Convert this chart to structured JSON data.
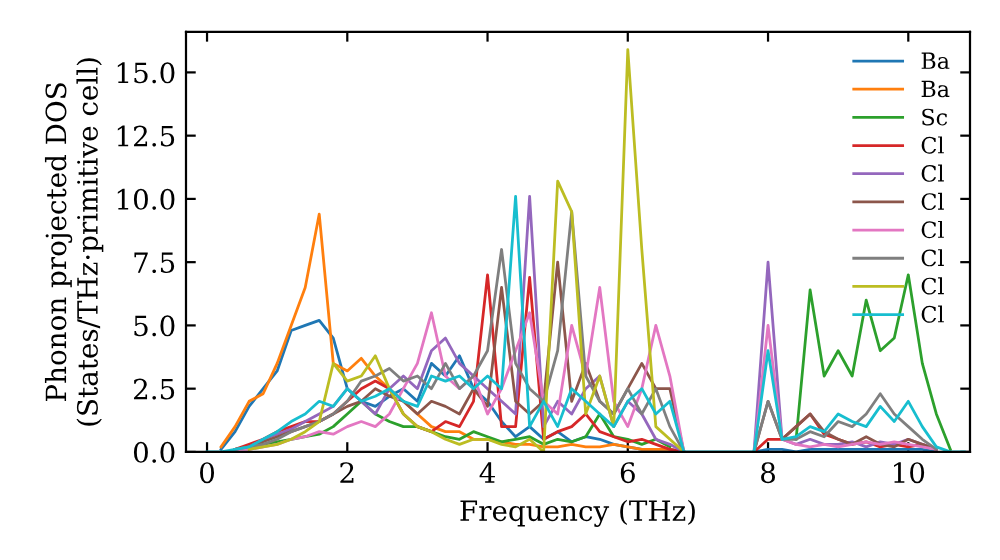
{
  "chart_data": {
    "type": "line",
    "xlabel": "Frequency (THz)",
    "ylabel": "Phonon projected DOS\n(States/THz·primitive cell)",
    "x": [
      0.0,
      0.2,
      0.4,
      0.6,
      0.8,
      1.0,
      1.2,
      1.4,
      1.6,
      1.8,
      2.0,
      2.2,
      2.4,
      2.6,
      2.8,
      3.0,
      3.2,
      3.4,
      3.6,
      3.8,
      4.0,
      4.2,
      4.4,
      4.6,
      4.8,
      5.0,
      5.2,
      5.4,
      5.6,
      5.8,
      6.0,
      6.2,
      6.4,
      6.6,
      6.8,
      7.0,
      7.2,
      7.4,
      7.6,
      7.8,
      8.0,
      8.2,
      8.4,
      8.6,
      8.8,
      9.0,
      9.2,
      9.4,
      9.6,
      9.8,
      10.0,
      10.2,
      10.4,
      10.6,
      10.8
    ],
    "series": [
      {
        "name": "Ba",
        "color": "#1f77b4",
        "values": [
          null,
          0.1,
          0.8,
          1.8,
          2.5,
          3.2,
          4.8,
          5.0,
          5.2,
          4.5,
          2.5,
          2.0,
          1.8,
          2.2,
          2.5,
          2.0,
          3.5,
          3.0,
          3.8,
          2.5,
          2.0,
          1.2,
          0.6,
          1.0,
          0.5,
          0.8,
          0.4,
          0.6,
          0.5,
          0.3,
          0.2,
          0.1,
          0.1,
          0.1,
          0,
          null,
          null,
          null,
          null,
          0,
          0.1,
          0.1,
          0,
          0.1,
          0.1,
          0.1,
          0.1,
          0.1,
          0.1,
          0.1,
          0.1,
          0.1,
          0,
          null,
          null
        ]
      },
      {
        "name": "Ba",
        "color": "#ff7f0e",
        "values": [
          null,
          0.2,
          1.0,
          2.0,
          2.3,
          3.5,
          5.0,
          6.5,
          9.4,
          3.5,
          3.2,
          3.7,
          3.0,
          2.5,
          2.0,
          1.5,
          1.0,
          0.8,
          0.8,
          0.5,
          0.5,
          0.4,
          0.3,
          0.3,
          0.2,
          0.2,
          0.3,
          0.2,
          0.2,
          0.3,
          0.2,
          0.1,
          0.1,
          0.1,
          0,
          null,
          null,
          null,
          null,
          null,
          null,
          null,
          null,
          null,
          null,
          null,
          null,
          null,
          null,
          null,
          null,
          null,
          null,
          null,
          null
        ]
      },
      {
        "name": "Sc",
        "color": "#2ca02c",
        "values": [
          null,
          null,
          0.1,
          0.2,
          0.3,
          0.4,
          0.5,
          0.6,
          0.7,
          1.0,
          1.5,
          2.0,
          1.5,
          1.2,
          1.0,
          1.0,
          0.8,
          0.6,
          0.5,
          0.8,
          0.6,
          0.4,
          0.5,
          0.6,
          0.3,
          0.5,
          0.4,
          0.6,
          1.5,
          0.6,
          0.5,
          0.3,
          0.5,
          0.2,
          null,
          null,
          null,
          null,
          null,
          null,
          null,
          null,
          0.5,
          6.4,
          3.0,
          4.0,
          3.0,
          6.0,
          4.0,
          4.5,
          7.0,
          3.5,
          1.5,
          0.1,
          null
        ]
      },
      {
        "name": "Cl",
        "color": "#d62728",
        "values": [
          null,
          null,
          0.1,
          0.3,
          0.5,
          0.8,
          1.0,
          1.2,
          1.2,
          1.5,
          2.0,
          2.5,
          2.8,
          2.5,
          1.5,
          1.0,
          0.8,
          1.2,
          1.0,
          2.0,
          7.0,
          1.0,
          1.0,
          6.9,
          0.5,
          0.8,
          1.0,
          1.5,
          0.8,
          0.6,
          0.4,
          0.5,
          0.3,
          0.1,
          0,
          null,
          null,
          null,
          null,
          0,
          0.5,
          0.5,
          1.0,
          1.5,
          0.7,
          0.5,
          0.3,
          0.4,
          0.2,
          0.3,
          0.2,
          0.3,
          0.1,
          null,
          null
        ]
      },
      {
        "name": "Cl",
        "color": "#9467bd",
        "values": [
          null,
          null,
          null,
          0.2,
          0.5,
          0.7,
          0.9,
          1.2,
          1.5,
          1.8,
          2.5,
          2.0,
          1.5,
          2.5,
          3.0,
          2.5,
          4.0,
          4.5,
          3.5,
          3.0,
          2.5,
          2.0,
          1.5,
          10.1,
          1.0,
          2.0,
          1.5,
          2.5,
          3.0,
          1.0,
          2.0,
          1.5,
          0.5,
          0.3,
          0,
          null,
          null,
          null,
          null,
          0,
          7.5,
          0.5,
          0.3,
          0.5,
          0.3,
          0.3,
          0.4,
          0.2,
          0.4,
          0.3,
          0.5,
          0.3,
          0.1,
          null,
          null
        ]
      },
      {
        "name": "Cl",
        "color": "#8c564b",
        "values": [
          null,
          null,
          0.1,
          0.2,
          0.4,
          0.6,
          0.8,
          1.0,
          1.2,
          1.5,
          1.8,
          2.0,
          2.5,
          2.2,
          2.0,
          1.5,
          2.0,
          1.8,
          1.5,
          2.5,
          1.8,
          6.5,
          2.0,
          1.5,
          2.0,
          7.5,
          2.0,
          3.5,
          2.0,
          1.5,
          2.5,
          3.5,
          2.5,
          2.5,
          0,
          null,
          null,
          null,
          null,
          0,
          2.0,
          0.5,
          1.0,
          1.5,
          0.8,
          0.5,
          0.3,
          0.6,
          0.3,
          0.2,
          0.5,
          0.3,
          0.1,
          null,
          null
        ]
      },
      {
        "name": "Cl",
        "color": "#e377c2",
        "values": [
          null,
          null,
          0.1,
          0.1,
          0.2,
          0.3,
          0.5,
          0.6,
          0.8,
          0.7,
          1.0,
          1.2,
          1.0,
          1.5,
          2.5,
          3.5,
          5.5,
          3.0,
          2.5,
          3.0,
          1.5,
          2.5,
          4.0,
          5.5,
          2.0,
          1.5,
          5.0,
          3.0,
          6.5,
          2.0,
          1.0,
          2.5,
          5.0,
          3.0,
          0,
          null,
          null,
          null,
          null,
          0,
          5.0,
          0.5,
          0.3,
          0.2,
          0.3,
          0.2,
          0.3,
          0.4,
          0.3,
          0.4,
          0.3,
          0.2,
          0.1,
          null,
          null
        ]
      },
      {
        "name": "Cl",
        "color": "#7f7f7f",
        "values": [
          null,
          null,
          0.1,
          0.2,
          0.3,
          0.5,
          0.8,
          1.0,
          1.2,
          1.5,
          2.0,
          2.8,
          3.0,
          3.3,
          2.8,
          3.0,
          2.5,
          3.5,
          2.5,
          3.0,
          4.0,
          8.0,
          3.5,
          2.5,
          2.0,
          4.0,
          9.5,
          3.0,
          2.0,
          1.5,
          2.5,
          1.5,
          2.5,
          1.0,
          0,
          null,
          null,
          null,
          null,
          0,
          2.0,
          0.5,
          0.5,
          0.8,
          0.6,
          1.2,
          1.0,
          1.5,
          2.3,
          1.5,
          1.0,
          0.5,
          0.1,
          null,
          null
        ]
      },
      {
        "name": "Cl",
        "color": "#bcbd22",
        "values": [
          null,
          null,
          null,
          0.1,
          0.2,
          0.3,
          0.5,
          0.8,
          1.2,
          3.5,
          2.8,
          3.0,
          3.8,
          2.5,
          1.5,
          1.0,
          0.8,
          0.5,
          0.3,
          0.5,
          0.5,
          0.3,
          0.2,
          0.5,
          0,
          10.7,
          9.5,
          1.5,
          3.0,
          1.0,
          15.9,
          8.0,
          1.0,
          0.5,
          0,
          null,
          null,
          null,
          null,
          null,
          null,
          null,
          null,
          null,
          null,
          null,
          null,
          null,
          null,
          null,
          null,
          null,
          null,
          null,
          null
        ]
      },
      {
        "name": "Cl",
        "color": "#17becf",
        "values": [
          0,
          0,
          0.1,
          0.2,
          0.5,
          0.8,
          1.2,
          1.5,
          2.0,
          1.8,
          2.5,
          2.0,
          2.2,
          2.5,
          2.0,
          1.8,
          3.0,
          2.8,
          3.0,
          2.5,
          3.0,
          2.5,
          10.1,
          1.0,
          2.0,
          1.0,
          2.5,
          2.0,
          1.5,
          1.0,
          2.0,
          2.5,
          1.5,
          2.0,
          0,
          0,
          0,
          0,
          0,
          0,
          4.0,
          0.5,
          0.6,
          1.0,
          0.8,
          1.5,
          1.2,
          1.0,
          1.8,
          1.2,
          2.0,
          1.0,
          0.2,
          0,
          0
        ]
      }
    ],
    "xlim": [
      -0.3,
      10.88
    ],
    "ylim": [
      0.0,
      16.6
    ],
    "xticks": [
      0,
      2,
      4,
      6,
      8,
      10
    ],
    "yticks": [
      {
        "value": 0,
        "label": "0.0"
      },
      2.5,
      {
        "value": 5,
        "label": "5.0"
      },
      7.5,
      {
        "value": 10,
        "label": "10.0"
      },
      12.5,
      {
        "value": 15,
        "label": "15.0"
      }
    ],
    "legend": "top right",
    "grid": false
  }
}
